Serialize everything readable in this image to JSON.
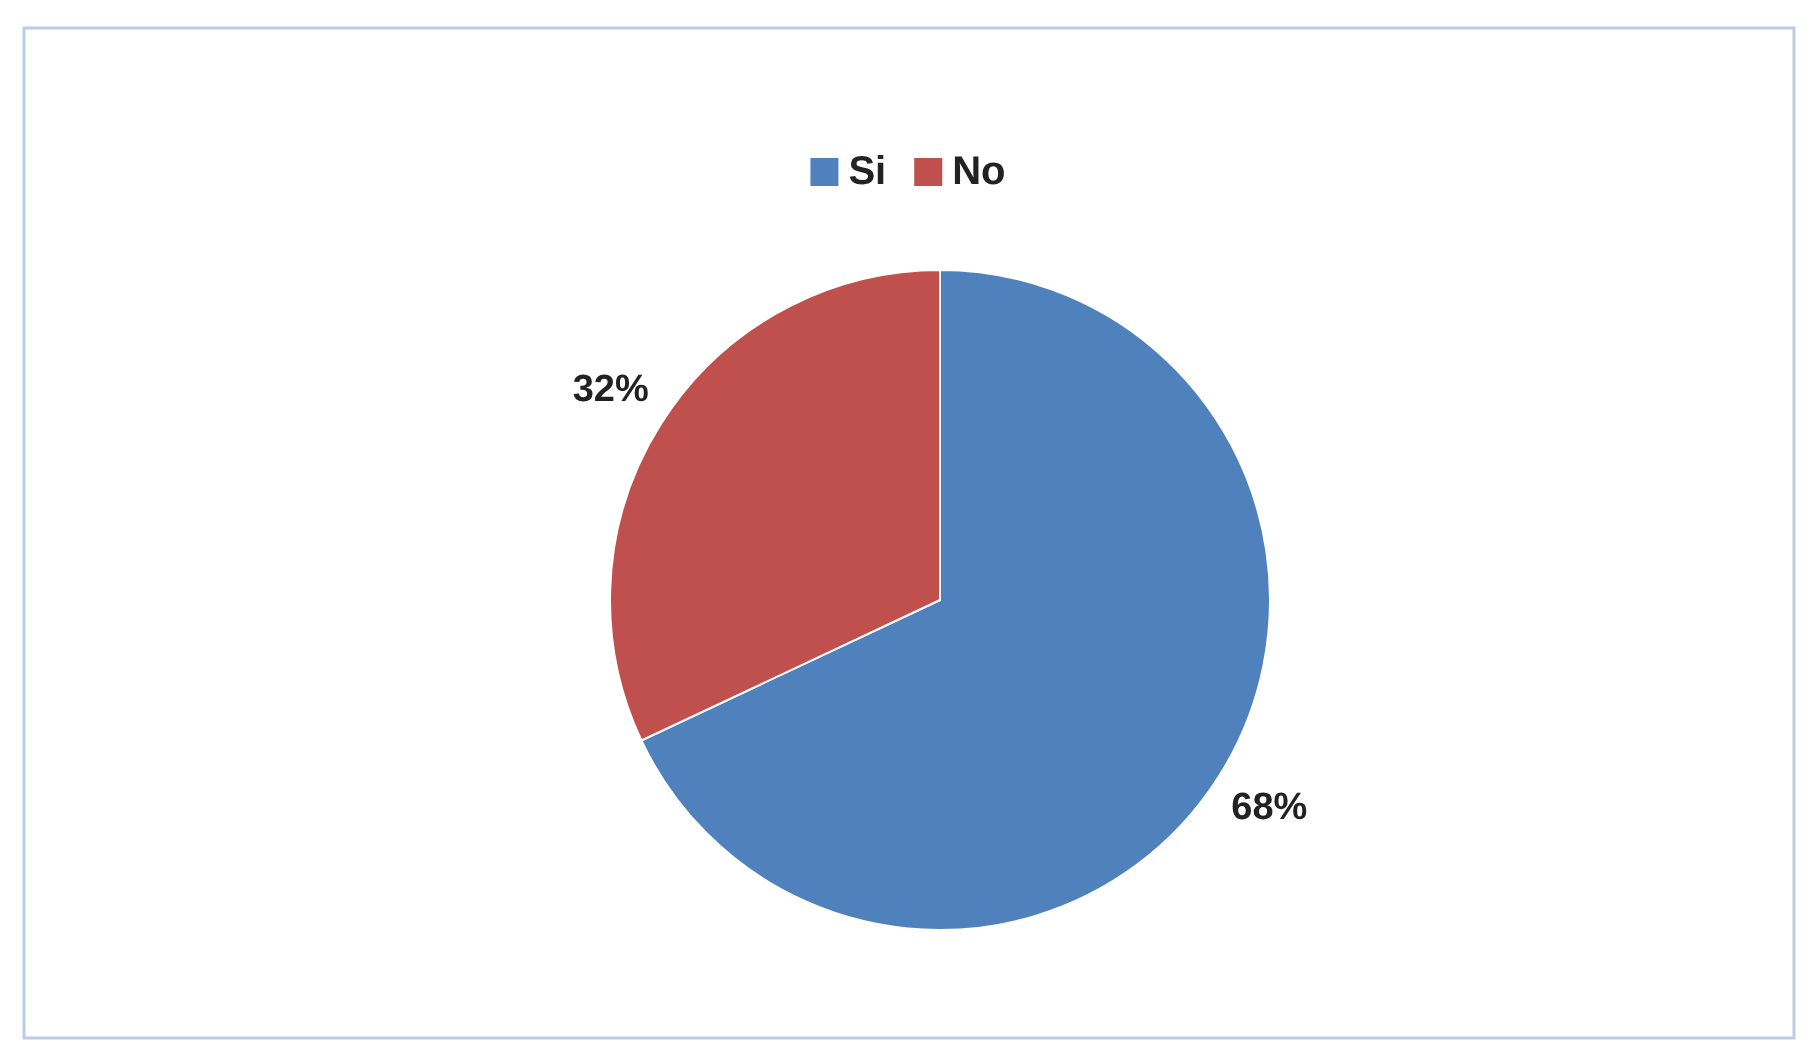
{
  "chart_data": {
    "type": "pie",
    "categories": [
      "Si",
      "No"
    ],
    "values": [
      68,
      32
    ],
    "colors": [
      "#4f81bd",
      "#c0504d"
    ],
    "value_labels": [
      "68%",
      "32%"
    ],
    "legend": "top"
  }
}
